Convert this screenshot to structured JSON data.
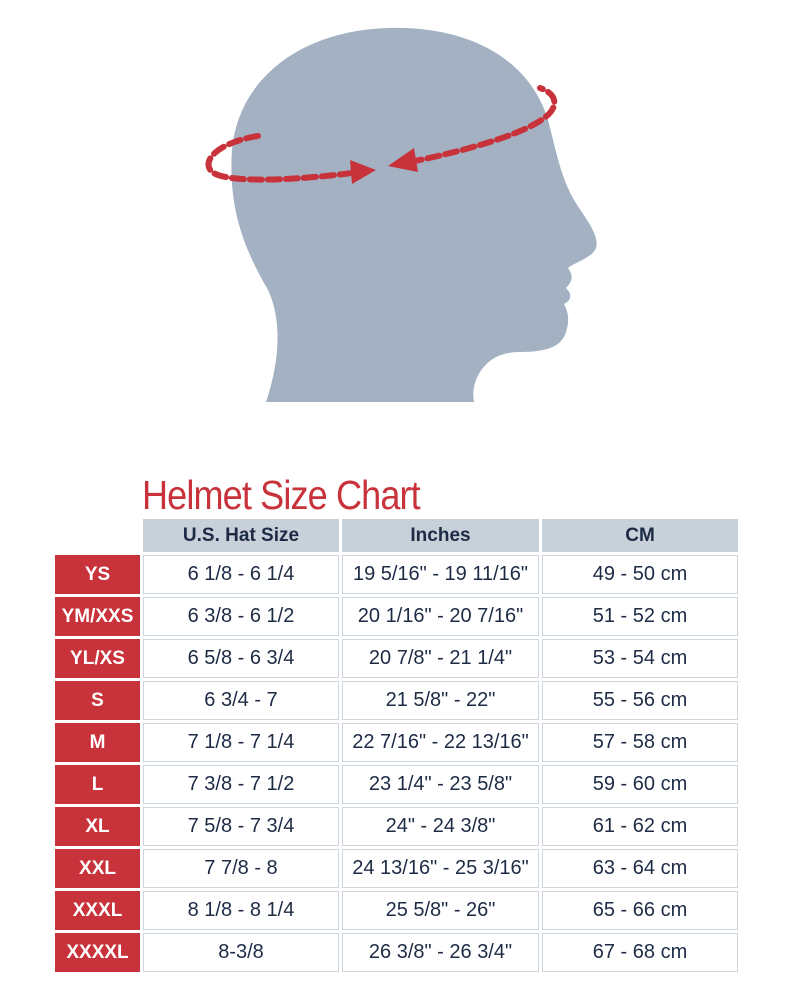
{
  "colors": {
    "accent": "#c8323a",
    "head": "#a3b1c2",
    "header_bg": "#c8d0da",
    "text": "#1d2b45"
  },
  "illustration": {
    "name": "head-circumference-diagram",
    "icon": "head-silhouette-with-measuring-arrows"
  },
  "title": "Helmet Size Chart",
  "headers": [
    "U.S. Hat Size",
    "Inches",
    "CM"
  ],
  "rows": [
    {
      "size": "YS",
      "hat": "6 1/8 - 6 1/4",
      "inches": "19 5/16\" - 19 11/16\"",
      "cm": "49 - 50 cm"
    },
    {
      "size": "YM/XXS",
      "hat": "6 3/8 - 6 1/2",
      "inches": "20 1/16\" - 20 7/16\"",
      "cm": "51 - 52 cm"
    },
    {
      "size": "YL/XS",
      "hat": "6 5/8 - 6 3/4",
      "inches": "20 7/8\" - 21 1/4\"",
      "cm": "53 - 54 cm"
    },
    {
      "size": "S",
      "hat": "6 3/4 - 7",
      "inches": "21 5/8\" - 22\"",
      "cm": "55 - 56 cm"
    },
    {
      "size": "M",
      "hat": "7 1/8 - 7 1/4",
      "inches": "22 7/16\" - 22 13/16\"",
      "cm": "57 - 58 cm"
    },
    {
      "size": "L",
      "hat": "7 3/8 - 7 1/2",
      "inches": "23 1/4\" - 23 5/8\"",
      "cm": "59 - 60 cm"
    },
    {
      "size": "XL",
      "hat": "7 5/8 - 7 3/4",
      "inches": "24\" - 24 3/8\"",
      "cm": "61 - 62 cm"
    },
    {
      "size": "XXL",
      "hat": "7 7/8 - 8",
      "inches": "24 13/16\" - 25 3/16\"",
      "cm": "63 - 64 cm"
    },
    {
      "size": "XXXL",
      "hat": "8 1/8 - 8 1/4",
      "inches": "25 5/8\" - 26\"",
      "cm": "65 - 66 cm"
    },
    {
      "size": "XXXXL",
      "hat": "8-3/8",
      "inches": "26 3/8\" - 26 3/4\"",
      "cm": "67 - 68 cm"
    }
  ]
}
